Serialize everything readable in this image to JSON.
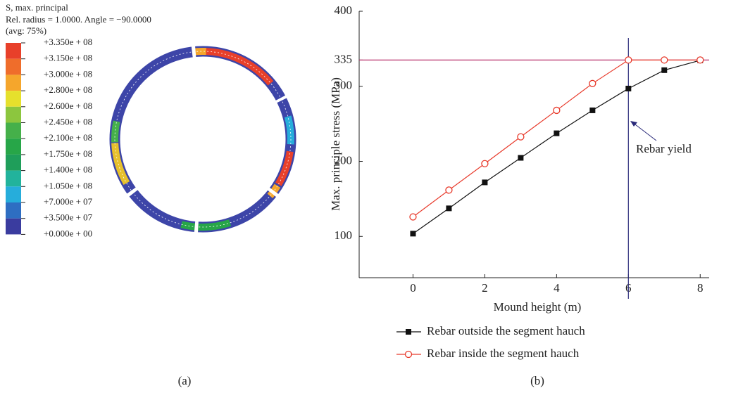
{
  "panel_a": {
    "title_lines": [
      "S, max. principal",
      "Rel. radius = 1.0000. Angle = −90.0000",
      "(avg: 75%)"
    ],
    "legend_labels": [
      "+3.350e + 08",
      "+3.150e + 08",
      "+3.000e + 08",
      "+2.800e + 08",
      "+2.600e + 08",
      "+2.450e + 08",
      "+2.100e + 08",
      "+1.750e + 08",
      "+1.400e + 08",
      "+1.050e + 08",
      "+7.000e + 07",
      "+3.500e + 07",
      "+0.000e + 00"
    ],
    "legend_colors": [
      "#e8402a",
      "#ef6d2b",
      "#f5a62c",
      "#e6e02c",
      "#8cc63e",
      "#45b04a",
      "#27a648",
      "#1f9e5a",
      "#22b39c",
      "#26addb",
      "#2e6ec2",
      "#3a3c9f"
    ],
    "caption": "(a)"
  },
  "chart_data": {
    "type": "line",
    "caption": "(b)",
    "x_label": "Mound height (m)",
    "y_label": "Max. principle stress (MPa)",
    "x": [
      0,
      1,
      2,
      3,
      4,
      5,
      6,
      7,
      8
    ],
    "series": [
      {
        "name": "Rebar outside the segment hauch",
        "color": "#111111",
        "marker": "square",
        "values": [
          103.7,
          137.4,
          172,
          204.7,
          237.4,
          268,
          297,
          321.5,
          334.6
        ]
      },
      {
        "name": "Rebar inside the segment hauch",
        "color": "#e8392a",
        "marker": "circle",
        "values": [
          126,
          161.7,
          197,
          232.7,
          268,
          303.7,
          335,
          335,
          335
        ]
      }
    ],
    "xlim": [
      -1.5,
      8.25
    ],
    "ylim": [
      45,
      400
    ],
    "xticks": [
      0,
      2,
      4,
      6,
      8
    ],
    "yticks": [
      100,
      200,
      300,
      335,
      400
    ],
    "hline": {
      "value": 335,
      "color": "#b8306a"
    },
    "vline": {
      "value": 6,
      "color": "#2a2a7a"
    },
    "annotation": "Rebar yield"
  }
}
